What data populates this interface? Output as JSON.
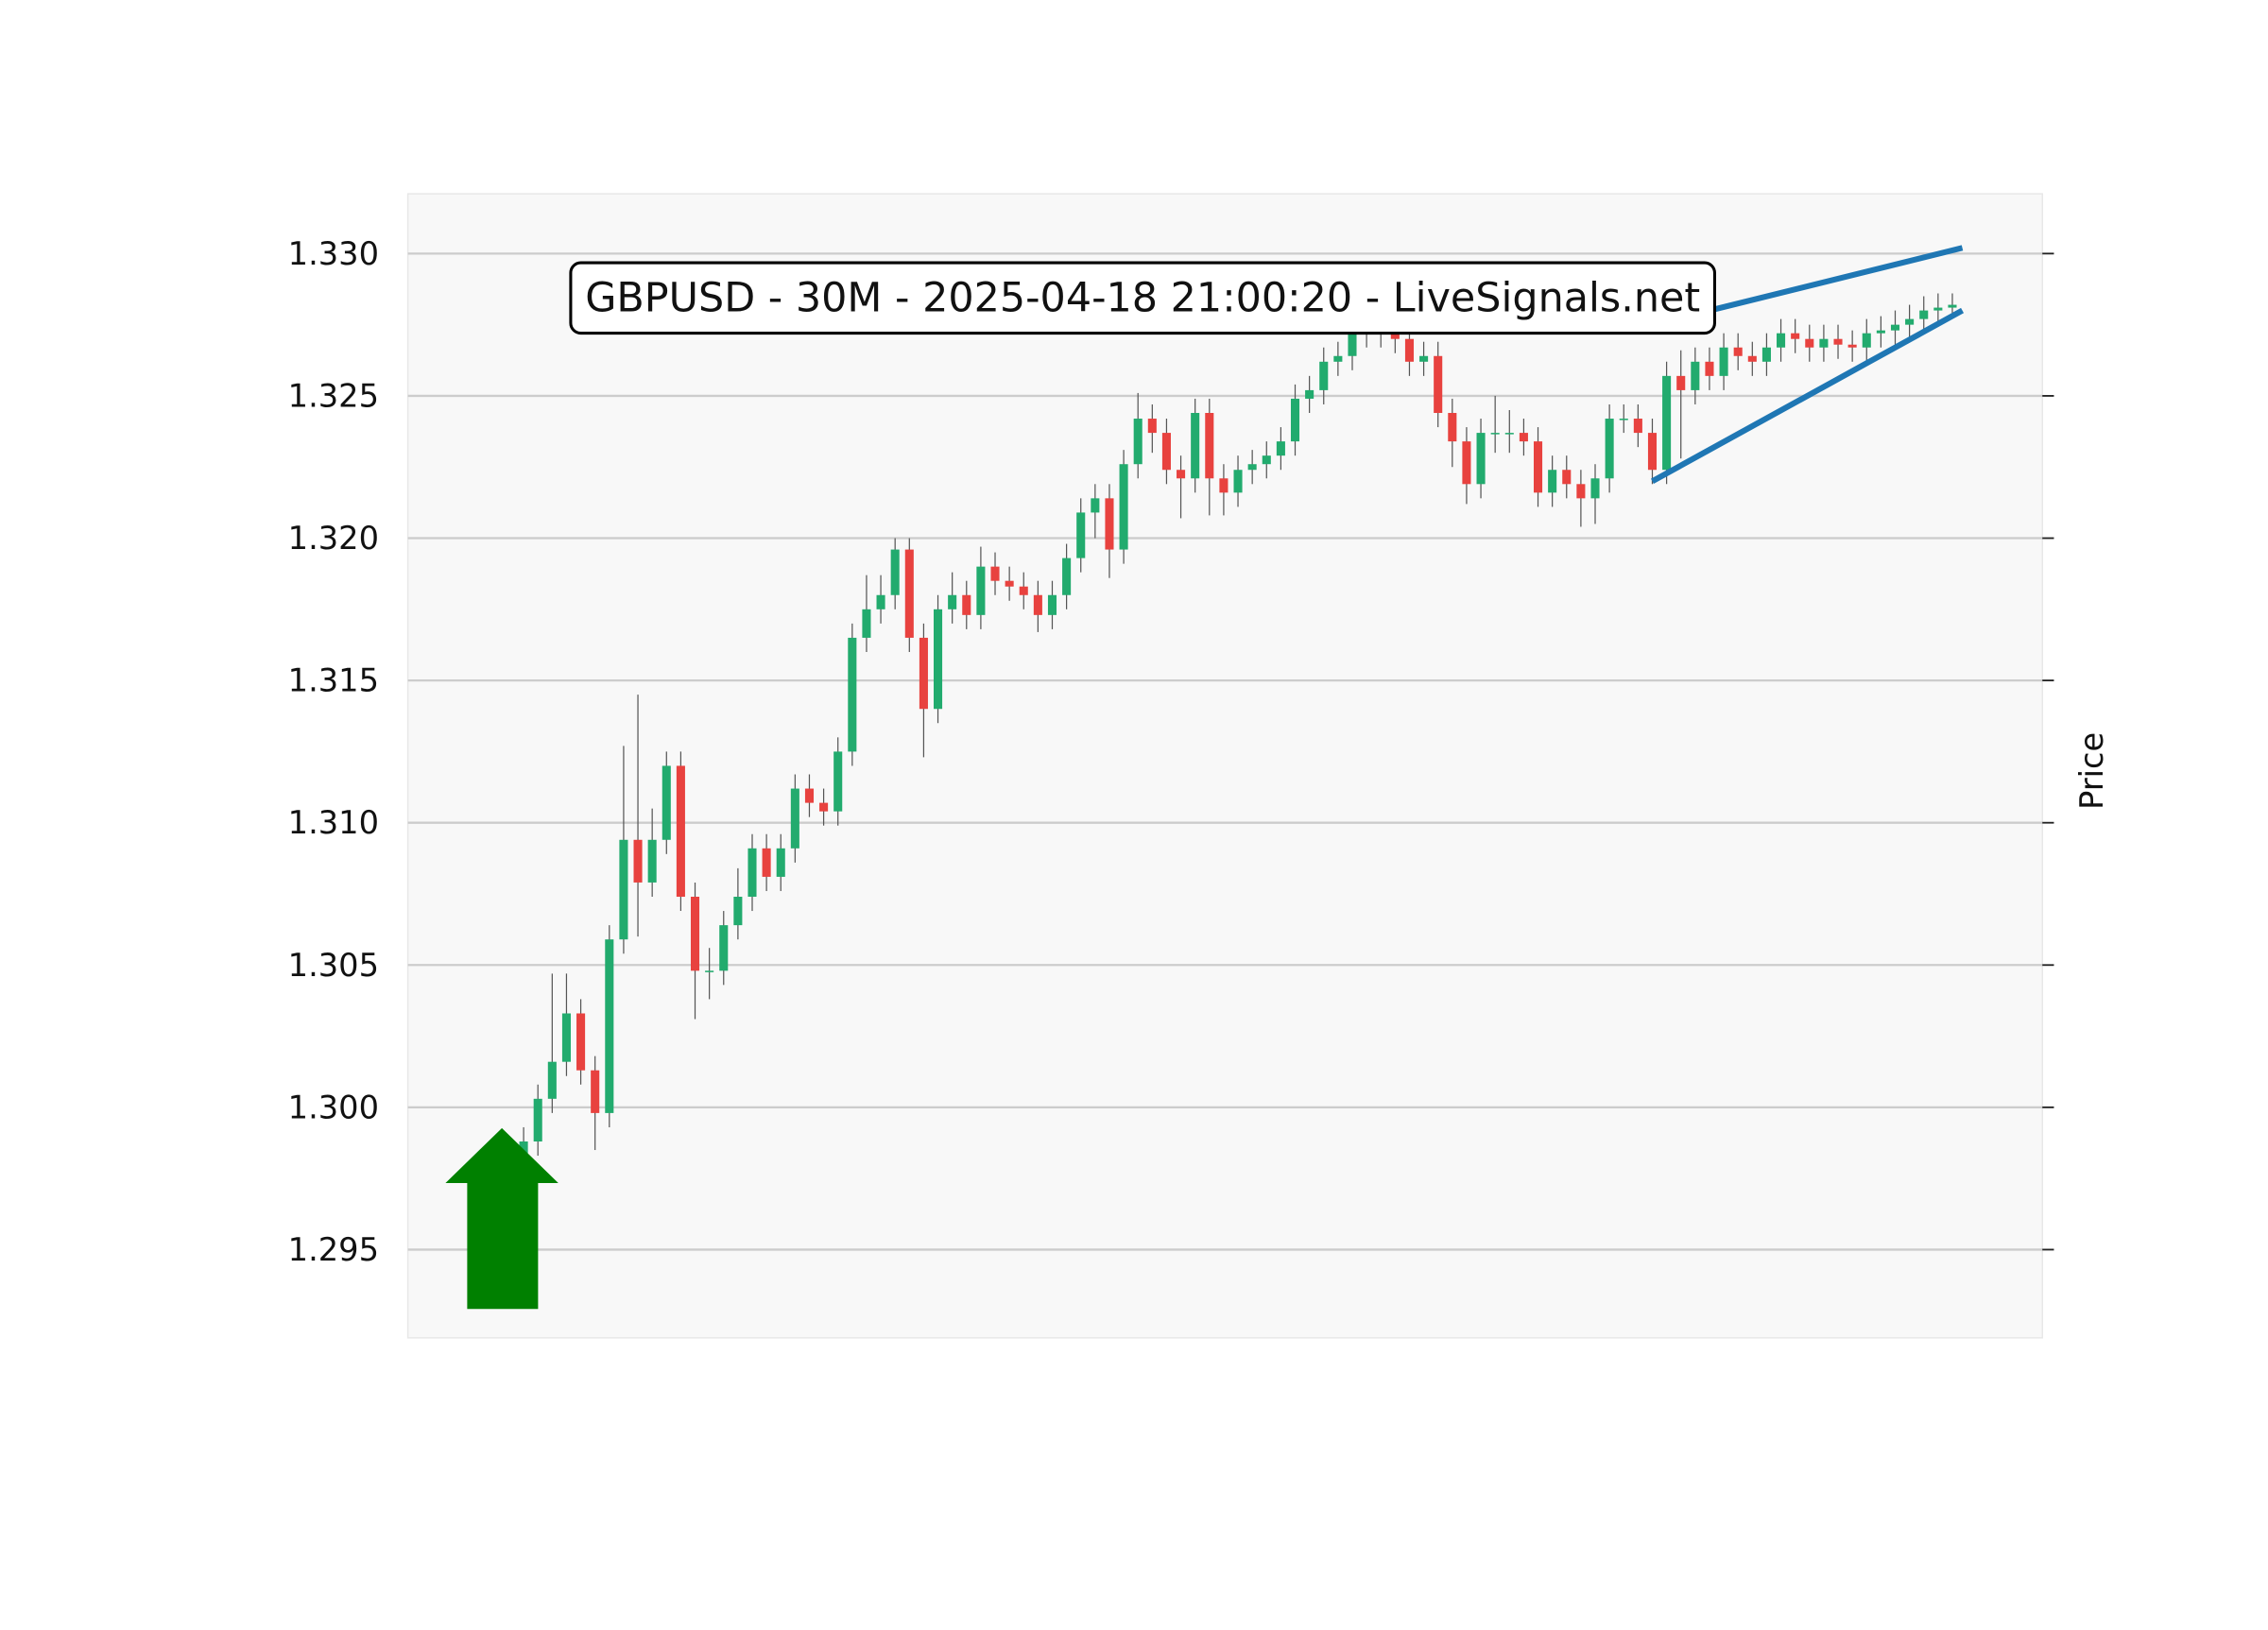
{
  "chart_data": {
    "type": "candlestick",
    "title": "GBPUSD - 30M - 2025-04-18 21:00:20 - LiveSignals.net",
    "y_label": "Price",
    "open": [
      1.2983,
      1.2988,
      1.3003,
      1.3016,
      1.3033,
      1.3013,
      1.2998,
      1.3059,
      1.3094,
      1.3079,
      1.3094,
      1.312,
      1.3074,
      1.3048,
      1.3048,
      1.3064,
      1.3074,
      1.3091,
      1.3081,
      1.3091,
      1.3112,
      1.3107,
      1.3104,
      1.3125,
      1.3165,
      1.3175,
      1.318,
      1.3196,
      1.3165,
      1.314,
      1.3175,
      1.318,
      1.3173,
      1.319,
      1.3185,
      1.3183,
      1.318,
      1.3173,
      1.318,
      1.3193,
      1.3209,
      1.3214,
      1.3196,
      1.3226,
      1.3242,
      1.3237,
      1.3224,
      1.3221,
      1.3244,
      1.3221,
      1.3216,
      1.3224,
      1.3226,
      1.3229,
      1.3234,
      1.3249,
      1.3252,
      1.3262,
      1.3264,
      1.3272,
      1.3274,
      1.3272,
      1.327,
      1.3262,
      1.3264,
      1.3244,
      1.3234,
      1.3219,
      1.3237,
      1.3237,
      1.3237,
      1.3234,
      1.3216,
      1.3224,
      1.3219,
      1.3214,
      1.3221,
      1.3242,
      1.3242,
      1.3237,
      1.3224,
      1.3257,
      1.3252,
      1.3262,
      1.3257,
      1.3267,
      1.3264,
      1.3262,
      1.3267,
      1.3272,
      1.327,
      1.3267,
      1.327,
      1.3268,
      1.3267,
      1.3272,
      1.3273,
      1.3275,
      1.3277,
      1.328,
      1.3281
    ],
    "high": [
      1.2993,
      1.3008,
      1.3047,
      1.3047,
      1.3038,
      1.3018,
      1.3064,
      1.3127,
      1.3145,
      1.3105,
      1.3125,
      1.3125,
      1.3079,
      1.3056,
      1.3069,
      1.3084,
      1.3096,
      1.3096,
      1.3096,
      1.3117,
      1.3117,
      1.3112,
      1.313,
      1.317,
      1.3187,
      1.3187,
      1.32,
      1.32,
      1.317,
      1.318,
      1.3188,
      1.3185,
      1.3197,
      1.3195,
      1.319,
      1.3188,
      1.3185,
      1.3185,
      1.3198,
      1.3214,
      1.3219,
      1.3219,
      1.3231,
      1.3251,
      1.3247,
      1.3242,
      1.3229,
      1.3249,
      1.3249,
      1.3226,
      1.3229,
      1.3231,
      1.3234,
      1.3239,
      1.3254,
      1.3257,
      1.3267,
      1.3269,
      1.3277,
      1.3279,
      1.3279,
      1.3277,
      1.3275,
      1.3269,
      1.3269,
      1.3249,
      1.3239,
      1.3242,
      1.325,
      1.3245,
      1.3242,
      1.3239,
      1.3229,
      1.3229,
      1.3224,
      1.3226,
      1.3247,
      1.3247,
      1.3247,
      1.3242,
      1.3262,
      1.3266,
      1.3267,
      1.3267,
      1.3272,
      1.3272,
      1.3269,
      1.3272,
      1.3277,
      1.3277,
      1.3275,
      1.3275,
      1.3275,
      1.3273,
      1.3277,
      1.3278,
      1.328,
      1.3282,
      1.3285,
      1.3286,
      1.3286
    ],
    "low": [
      1.2978,
      1.2983,
      1.2998,
      1.3011,
      1.3008,
      1.2985,
      1.2993,
      1.3054,
      1.306,
      1.3074,
      1.3089,
      1.3069,
      1.3031,
      1.3038,
      1.3043,
      1.3059,
      1.3069,
      1.3076,
      1.3076,
      1.3086,
      1.3102,
      1.3099,
      1.3099,
      1.312,
      1.316,
      1.317,
      1.3175,
      1.316,
      1.3123,
      1.3135,
      1.317,
      1.3168,
      1.3168,
      1.318,
      1.3178,
      1.3175,
      1.3167,
      1.3168,
      1.3175,
      1.3188,
      1.32,
      1.3186,
      1.3191,
      1.3221,
      1.323,
      1.3219,
      1.3207,
      1.3216,
      1.3208,
      1.3208,
      1.3211,
      1.3219,
      1.3221,
      1.3224,
      1.3229,
      1.3244,
      1.3247,
      1.3257,
      1.3259,
      1.3267,
      1.3267,
      1.3265,
      1.3257,
      1.3257,
      1.3239,
      1.3225,
      1.3212,
      1.3214,
      1.323,
      1.323,
      1.3229,
      1.3211,
      1.3211,
      1.3214,
      1.3204,
      1.3205,
      1.3216,
      1.3237,
      1.3232,
      1.3219,
      1.3219,
      1.3228,
      1.3247,
      1.3252,
      1.3252,
      1.3259,
      1.3257,
      1.3257,
      1.3262,
      1.3265,
      1.3262,
      1.3262,
      1.3263,
      1.3262,
      1.3262,
      1.3267,
      1.3268,
      1.327,
      1.3272,
      1.3276,
      1.3278
    ],
    "close": [
      1.2988,
      1.3003,
      1.3016,
      1.3033,
      1.3013,
      1.2998,
      1.3059,
      1.3094,
      1.3079,
      1.3094,
      1.312,
      1.3074,
      1.3048,
      1.3048,
      1.3064,
      1.3074,
      1.3091,
      1.3081,
      1.3091,
      1.3112,
      1.3107,
      1.3104,
      1.3125,
      1.3165,
      1.3175,
      1.318,
      1.3196,
      1.3165,
      1.314,
      1.3175,
      1.318,
      1.3173,
      1.319,
      1.3185,
      1.3183,
      1.318,
      1.3173,
      1.318,
      1.3193,
      1.3209,
      1.3214,
      1.3196,
      1.3226,
      1.3242,
      1.3237,
      1.3224,
      1.3221,
      1.3244,
      1.3221,
      1.3216,
      1.3224,
      1.3226,
      1.3229,
      1.3234,
      1.3249,
      1.3252,
      1.3262,
      1.3264,
      1.3272,
      1.3274,
      1.3272,
      1.327,
      1.3262,
      1.3264,
      1.3244,
      1.3234,
      1.3219,
      1.3237,
      1.3237,
      1.3237,
      1.3234,
      1.3216,
      1.3224,
      1.3219,
      1.3214,
      1.3221,
      1.3242,
      1.3242,
      1.3237,
      1.3224,
      1.3257,
      1.3252,
      1.3262,
      1.3257,
      1.3267,
      1.3264,
      1.3262,
      1.3267,
      1.3272,
      1.327,
      1.3267,
      1.327,
      1.3268,
      1.3267,
      1.3272,
      1.3273,
      1.3275,
      1.3277,
      1.328,
      1.3281,
      1.3282
    ],
    "up_color": "#22ab6e",
    "down_color": "#e8423f",
    "wick_color": "#555555",
    "xlim": [
      -8.1,
      106.3
    ],
    "ylim": [
      1.2919,
      1.3321
    ],
    "yticks": [
      1.295,
      {
        "value": 1.3,
        "label": "1.300"
      },
      1.305,
      {
        "value": 1.31,
        "label": "1.310"
      },
      1.315,
      {
        "value": 1.32,
        "label": "1.320"
      },
      1.325,
      {
        "value": 1.33,
        "label": "1.330"
      }
    ],
    "grid": true,
    "trendlines": [
      {
        "x": [
          79.0,
          100.7
        ],
        "y": [
          1.3275,
          1.3302
        ],
        "color": "#1f77b4"
      },
      {
        "x": [
          79.0,
          100.7
        ],
        "y": [
          1.322,
          1.328
        ],
        "color": "#1f77b4"
      }
    ]
  }
}
